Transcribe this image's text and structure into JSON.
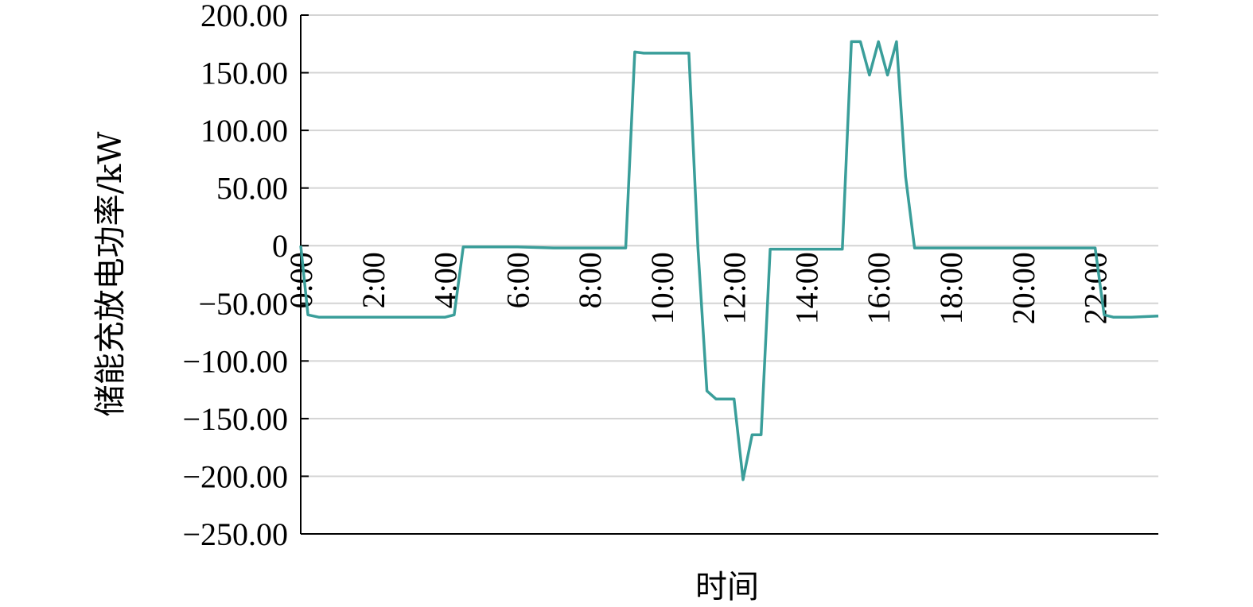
{
  "chart_data": {
    "type": "line",
    "title": "",
    "xlabel": "时间",
    "ylabel": "储能充放电功率/kW",
    "ylim": [
      -250,
      200
    ],
    "yticks": [
      200,
      150,
      100,
      50,
      0,
      -50,
      -100,
      -150,
      -200,
      -250
    ],
    "ytick_labels": [
      "200.00",
      "150.00",
      "100.00",
      "50.00",
      "0",
      "−50.00",
      "−100.00",
      "−150.00",
      "−200.00",
      "−250.00"
    ],
    "xlim": [
      0,
      23.75
    ],
    "xticks": [
      0,
      2,
      4,
      6,
      8,
      10,
      12,
      14,
      16,
      18,
      20,
      22
    ],
    "xtick_labels": [
      "0:00",
      "2:00",
      "4:00",
      "6:00",
      "8:00",
      "10:00",
      "12:00",
      "14:00",
      "16:00",
      "18:00",
      "20:00",
      "22:00"
    ],
    "grid": true,
    "line_color": "#3a9e9a",
    "series": [
      {
        "x": [
          0,
          0.2,
          0.5,
          1,
          2,
          3,
          4,
          4.25,
          4.5,
          5,
          6,
          7,
          8,
          9,
          9.25,
          9.5,
          10,
          10.5,
          10.75,
          11,
          11.25,
          11.5,
          12,
          12.25,
          12.5,
          12.75,
          13,
          13.25,
          14,
          15,
          15.25,
          15.5,
          15.75,
          16,
          16.25,
          16.5,
          16.75,
          17,
          18,
          19,
          20,
          21,
          22,
          22.25,
          22.5,
          23,
          23.75
        ],
        "y": [
          0,
          -60,
          -62,
          -62,
          -62,
          -62,
          -62,
          -60,
          -1,
          -1,
          -1,
          -2,
          -2,
          -2,
          168,
          167,
          167,
          167,
          167,
          -2,
          -126,
          -133,
          -133,
          -203,
          -164,
          -164,
          -3,
          -3,
          -3,
          -3,
          177,
          177,
          148,
          177,
          148,
          177,
          60,
          -2,
          -2,
          -2,
          -2,
          -2,
          -2,
          -60,
          -62,
          -62,
          -61
        ]
      }
    ]
  }
}
